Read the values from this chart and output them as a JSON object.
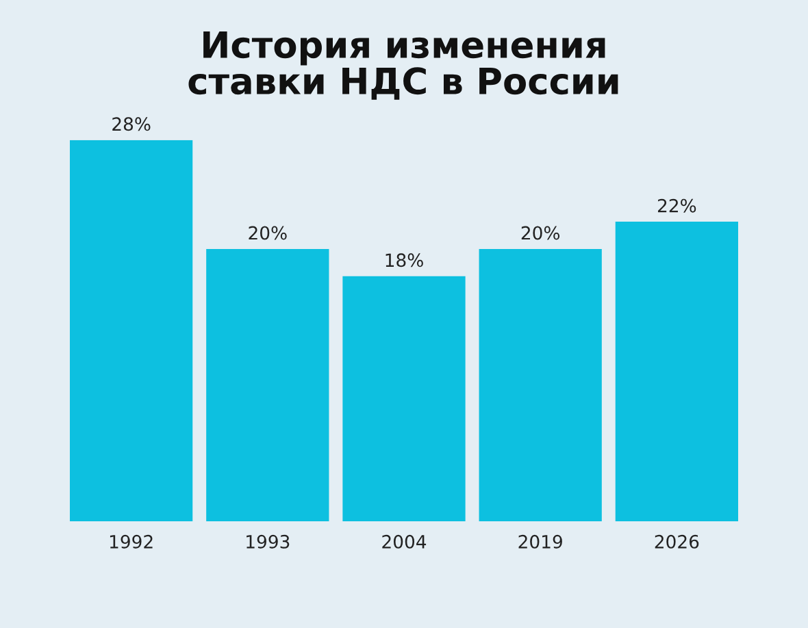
{
  "chart_data": {
    "type": "bar",
    "title": "История изменения\nставки НДС в России",
    "categories": [
      "1992",
      "1993",
      "2004",
      "2019",
      "2026"
    ],
    "values": [
      28,
      20,
      18,
      20,
      22
    ],
    "value_labels": [
      "28%",
      "20%",
      "18%",
      "20%",
      "22%"
    ],
    "color": "#0dc0e0",
    "grid": false,
    "legend": false
  }
}
